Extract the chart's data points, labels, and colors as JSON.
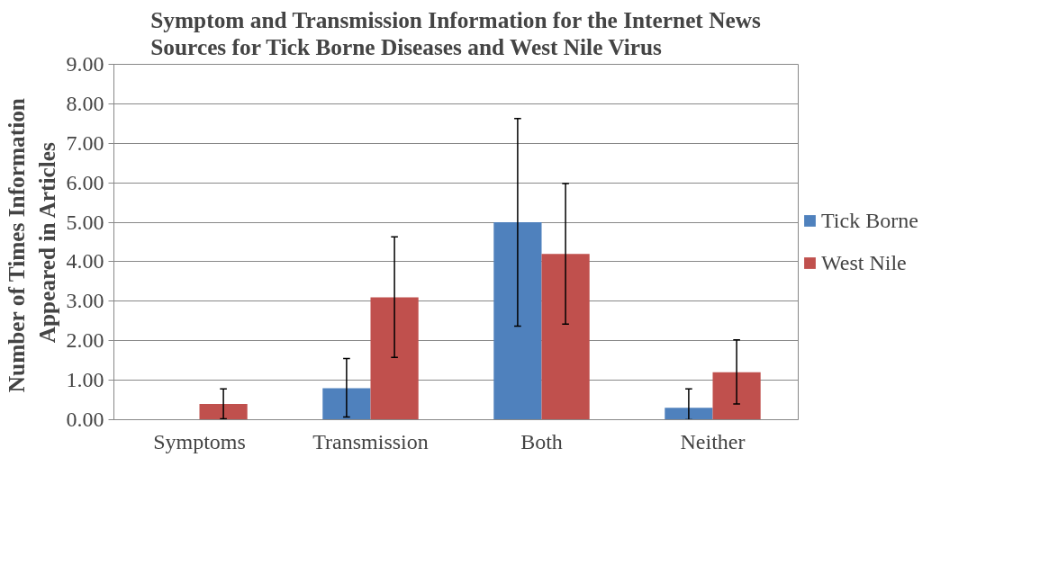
{
  "chart_data": {
    "type": "bar",
    "title": "Symptom and Transmission Information for the Internet News\nSources for Tick Borne Diseases and West Nile Virus",
    "ylabel": "Number of Times  Information\nAppeared in Articles",
    "categories": [
      "Symptoms",
      "Transmission",
      "Both",
      "Neither"
    ],
    "series": [
      {
        "name": "Tick Borne",
        "color": "#4f81bd",
        "values": [
          0,
          0.8,
          5.0,
          0.3
        ],
        "errors": [
          null,
          [
            0.07,
            1.55
          ],
          [
            2.37,
            7.63
          ],
          [
            0.0,
            0.78
          ]
        ]
      },
      {
        "name": "West Nile",
        "color": "#c0504d",
        "values": [
          0.4,
          3.1,
          4.2,
          1.2
        ],
        "errors": [
          [
            0.02,
            0.78
          ],
          [
            1.58,
            4.63
          ],
          [
            2.42,
            5.98
          ],
          [
            0.4,
            2.02
          ]
        ]
      }
    ],
    "ylim": [
      0,
      9
    ],
    "yticks": [
      {
        "value": 0,
        "label": "0.00"
      },
      {
        "value": 1,
        "label": "1.00"
      },
      {
        "value": 2,
        "label": "2.00"
      },
      {
        "value": 3,
        "label": "3.00"
      },
      {
        "value": 4,
        "label": "4.00"
      },
      {
        "value": 5,
        "label": "5.00"
      },
      {
        "value": 6,
        "label": "6.00"
      },
      {
        "value": 7,
        "label": "7.00"
      },
      {
        "value": 8,
        "label": "8.00"
      },
      {
        "value": 9,
        "label": "9.00"
      }
    ],
    "grid": "y",
    "legend": "right"
  }
}
